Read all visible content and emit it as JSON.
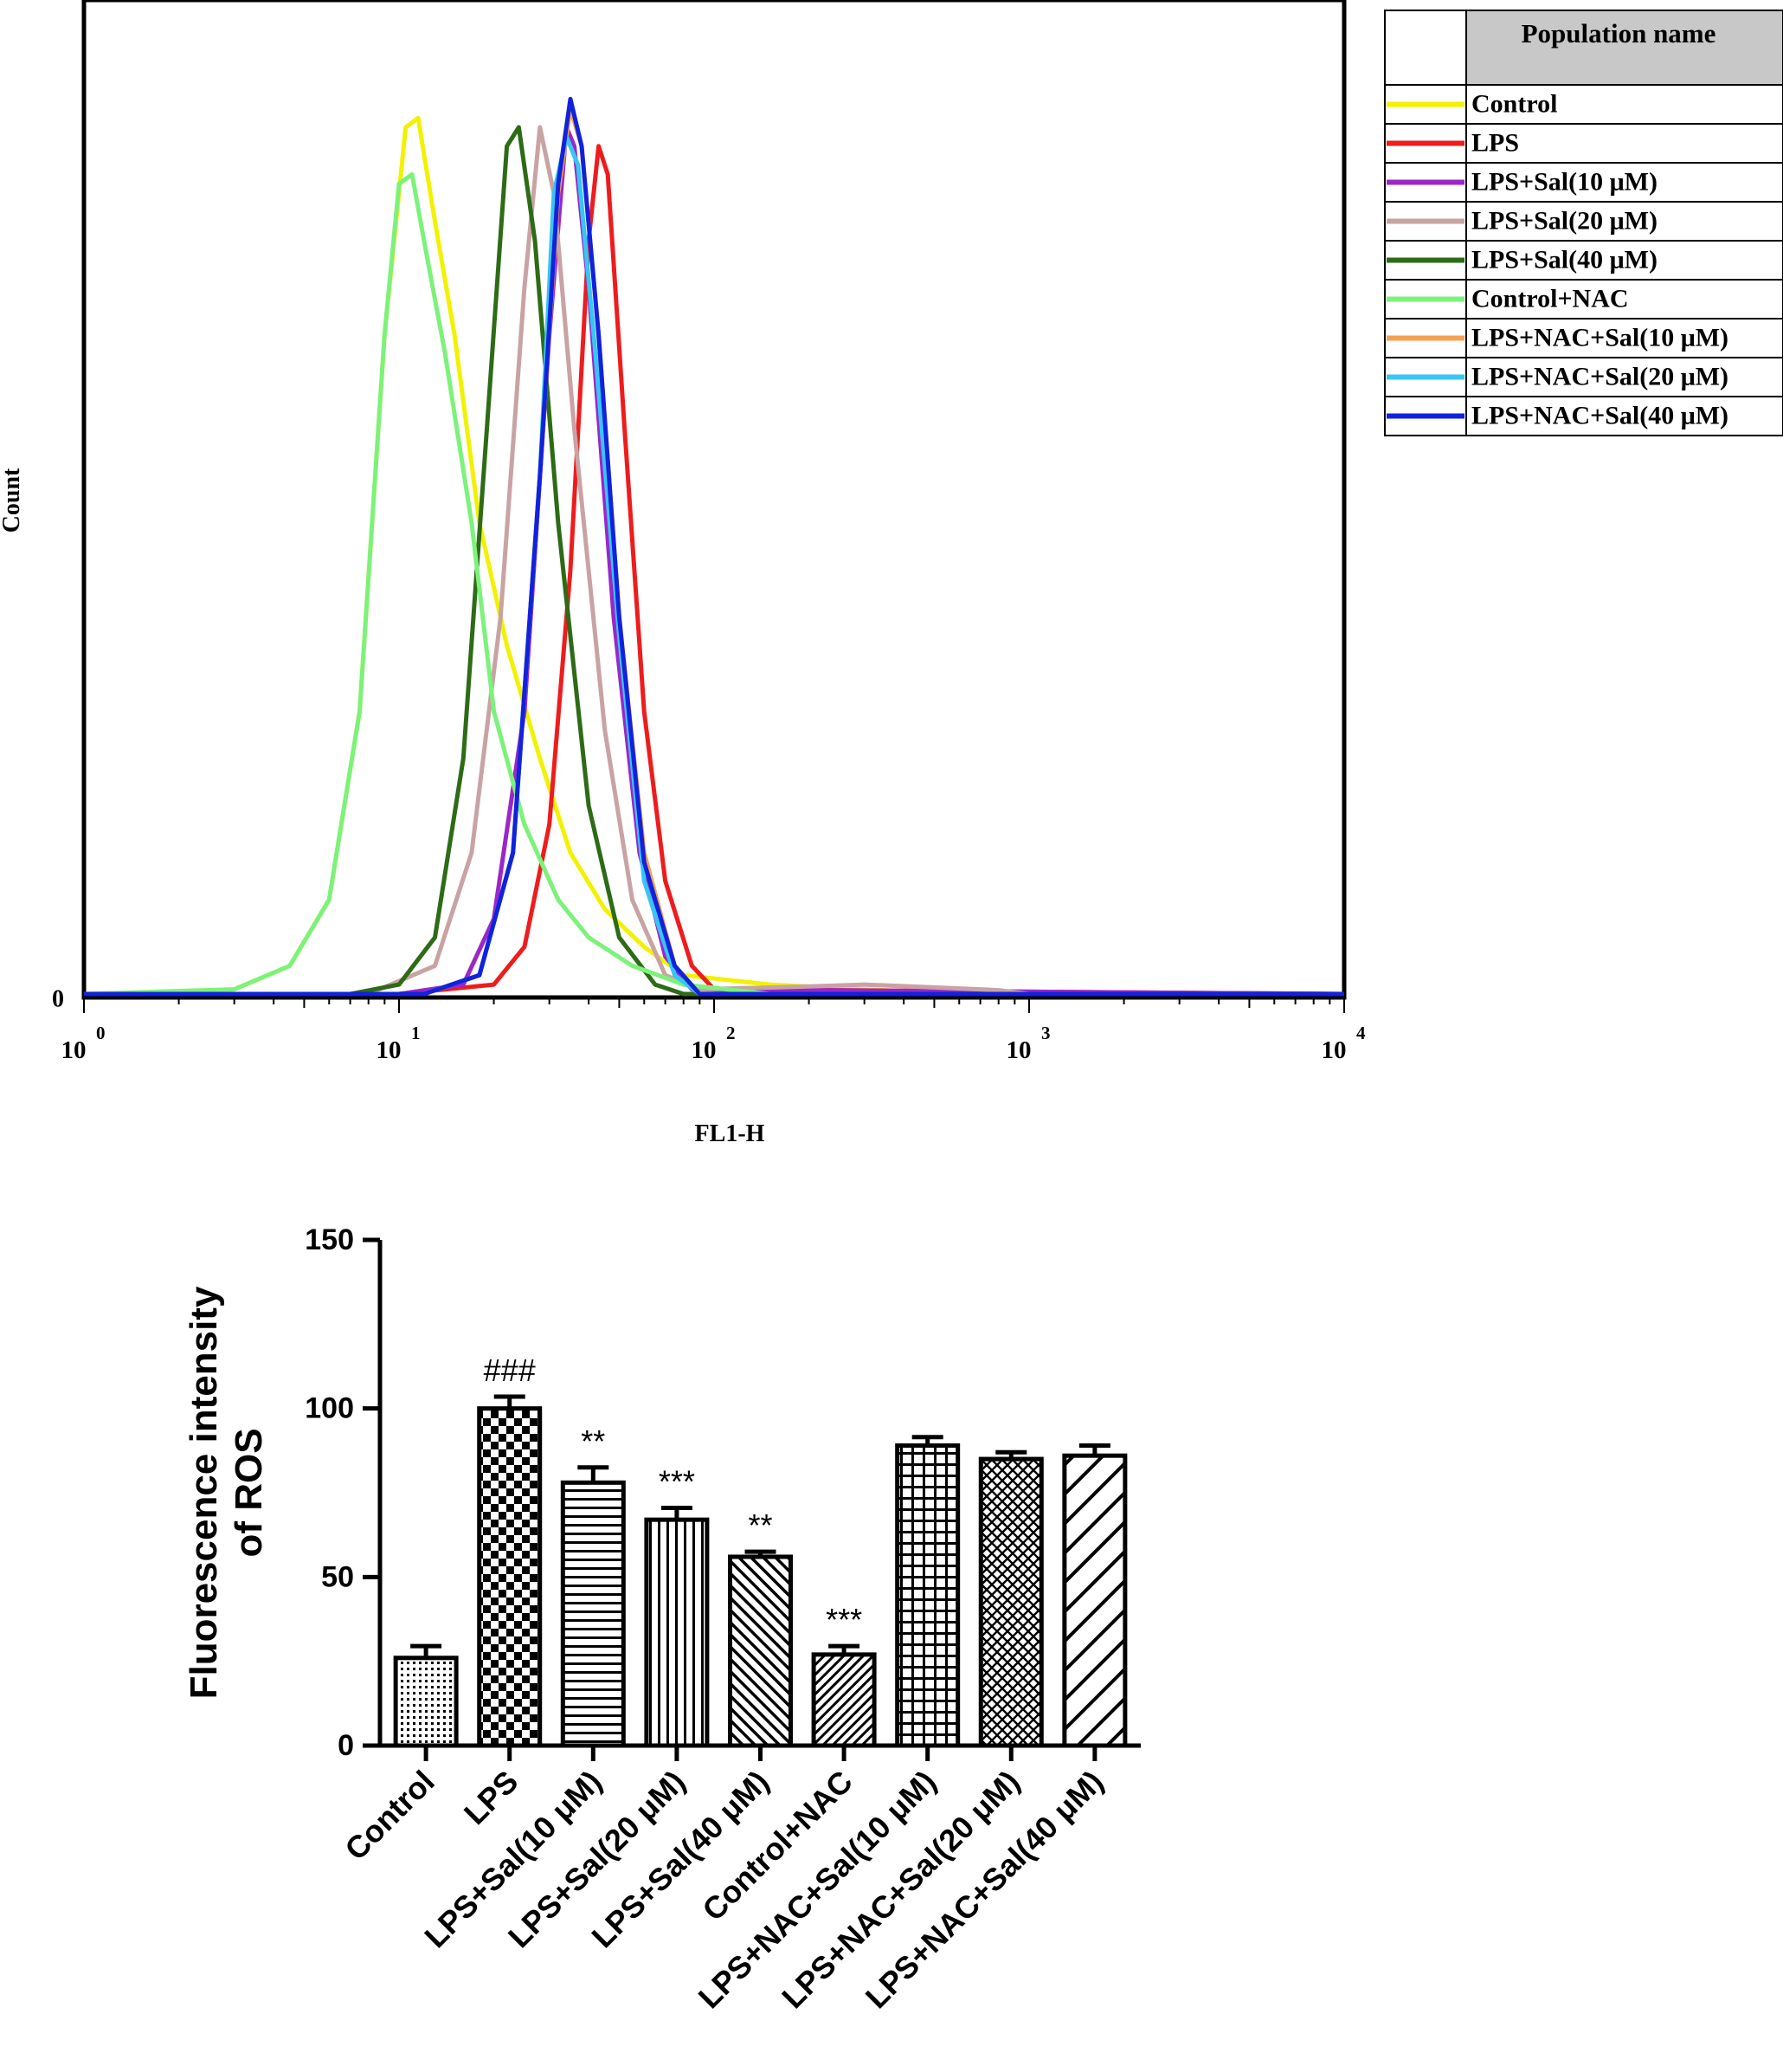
{
  "colors": {
    "Control": "#f2f200",
    "LPS": "#ee1c1c",
    "LPS+Sal(10 μM)": "#9b26c9",
    "LPS+Sal(20 μM)": "#c9a3a3",
    "LPS+Sal(40 μM)": "#2d6b16",
    "Control+NAC": "#7cf27a",
    "LPS+NAC+Sal(10 μM)": "#f5a152",
    "LPS+NAC+Sal(20 μM)": "#36c6f2",
    "LPS+NAC+Sal(40 μM)": "#1122dd",
    "bar_stroke": "#000000"
  },
  "chart_data": [
    {
      "type": "line",
      "xlabel": "FL1-H",
      "ylabel": "Count",
      "x_scale": "log",
      "xlim": [
        1,
        10000
      ],
      "ylim": [
        0,
        100
      ],
      "x_tick_labels": [
        "10^0",
        "10^1",
        "10^2",
        "10^3",
        "10^4"
      ],
      "y_tick_labels": [
        "0"
      ],
      "legend_header": "Population name",
      "legend_position": "outside-right",
      "series": [
        {
          "name": "Control",
          "points": [
            [
              1,
              0
            ],
            [
              3,
              0.5
            ],
            [
              4.5,
              3
            ],
            [
              6,
              10
            ],
            [
              7.5,
              30
            ],
            [
              9,
              70
            ],
            [
              10.5,
              92
            ],
            [
              11.5,
              93
            ],
            [
              13,
              82
            ],
            [
              15,
              70
            ],
            [
              18,
              50
            ],
            [
              22,
              37
            ],
            [
              28,
              25
            ],
            [
              35,
              15
            ],
            [
              45,
              9
            ],
            [
              60,
              5
            ],
            [
              80,
              2
            ],
            [
              150,
              1
            ],
            [
              400,
              0.3
            ],
            [
              1000,
              0
            ],
            [
              10000,
              0
            ]
          ]
        },
        {
          "name": "LPS",
          "points": [
            [
              1,
              0
            ],
            [
              10,
              0
            ],
            [
              20,
              1
            ],
            [
              25,
              5
            ],
            [
              30,
              18
            ],
            [
              35,
              45
            ],
            [
              40,
              80
            ],
            [
              43,
              90
            ],
            [
              46,
              87
            ],
            [
              52,
              60
            ],
            [
              60,
              30
            ],
            [
              70,
              12
            ],
            [
              85,
              3
            ],
            [
              100,
              0.5
            ],
            [
              10000,
              0
            ]
          ]
        },
        {
          "name": "LPS+Sal(10 μM)",
          "points": [
            [
              1,
              0
            ],
            [
              10,
              0
            ],
            [
              16,
              1
            ],
            [
              20,
              8
            ],
            [
              25,
              30
            ],
            [
              30,
              70
            ],
            [
              34,
              92
            ],
            [
              36,
              90
            ],
            [
              40,
              75
            ],
            [
              48,
              40
            ],
            [
              58,
              15
            ],
            [
              70,
              4
            ],
            [
              85,
              0.5
            ],
            [
              10000,
              0
            ]
          ]
        },
        {
          "name": "LPS+Sal(20 μM)",
          "points": [
            [
              1,
              0
            ],
            [
              8,
              0
            ],
            [
              13,
              3
            ],
            [
              17,
              15
            ],
            [
              21,
              40
            ],
            [
              25,
              75
            ],
            [
              28,
              92
            ],
            [
              31,
              85
            ],
            [
              36,
              60
            ],
            [
              45,
              28
            ],
            [
              55,
              10
            ],
            [
              70,
              2
            ],
            [
              90,
              0.5
            ],
            [
              200,
              0.8
            ],
            [
              300,
              1
            ],
            [
              500,
              0.7
            ],
            [
              800,
              0.4
            ],
            [
              1000,
              0
            ],
            [
              10000,
              0
            ]
          ]
        },
        {
          "name": "LPS+Sal(40 μM)",
          "points": [
            [
              1,
              0
            ],
            [
              7,
              0
            ],
            [
              10,
              1
            ],
            [
              13,
              6
            ],
            [
              16,
              25
            ],
            [
              19,
              60
            ],
            [
              22,
              90
            ],
            [
              24,
              92
            ],
            [
              27,
              80
            ],
            [
              32,
              50
            ],
            [
              40,
              20
            ],
            [
              50,
              6
            ],
            [
              65,
              1
            ],
            [
              80,
              0
            ],
            [
              10000,
              0
            ]
          ]
        },
        {
          "name": "Control+NAC",
          "points": [
            [
              1,
              0
            ],
            [
              3,
              0.5
            ],
            [
              4.5,
              3
            ],
            [
              6,
              10
            ],
            [
              7.5,
              30
            ],
            [
              9,
              70
            ],
            [
              10,
              86
            ],
            [
              11,
              87
            ],
            [
              12,
              80
            ],
            [
              14,
              68
            ],
            [
              17,
              50
            ],
            [
              20,
              30
            ],
            [
              25,
              18
            ],
            [
              32,
              10
            ],
            [
              40,
              6
            ],
            [
              55,
              3
            ],
            [
              80,
              1
            ],
            [
              150,
              0
            ],
            [
              10000,
              0
            ]
          ]
        },
        {
          "name": "LPS+NAC+Sal(10 μM)",
          "points": [
            [
              1,
              0
            ],
            [
              12,
              0
            ],
            [
              18,
              2
            ],
            [
              23,
              15
            ],
            [
              28,
              55
            ],
            [
              32,
              85
            ],
            [
              35,
              94
            ],
            [
              38,
              90
            ],
            [
              43,
              70
            ],
            [
              50,
              40
            ],
            [
              60,
              15
            ],
            [
              75,
              3
            ],
            [
              90,
              0
            ],
            [
              10000,
              0
            ]
          ]
        },
        {
          "name": "LPS+NAC+Sal(20 μM)",
          "points": [
            [
              1,
              0
            ],
            [
              12,
              0
            ],
            [
              18,
              2
            ],
            [
              23,
              15
            ],
            [
              28,
              55
            ],
            [
              31,
              85
            ],
            [
              34,
              91
            ],
            [
              37,
              88
            ],
            [
              42,
              68
            ],
            [
              50,
              38
            ],
            [
              60,
              12
            ],
            [
              75,
              2
            ],
            [
              90,
              0
            ],
            [
              10000,
              0
            ]
          ]
        },
        {
          "name": "LPS+NAC+Sal(40 μM)",
          "points": [
            [
              1,
              0
            ],
            [
              12,
              0
            ],
            [
              18,
              2
            ],
            [
              23,
              15
            ],
            [
              28,
              55
            ],
            [
              32,
              86
            ],
            [
              35,
              95
            ],
            [
              38,
              90
            ],
            [
              43,
              70
            ],
            [
              50,
              40
            ],
            [
              60,
              14
            ],
            [
              75,
              3
            ],
            [
              90,
              0
            ],
            [
              10000,
              0
            ]
          ]
        }
      ]
    },
    {
      "type": "bar",
      "xlabel": "",
      "ylabel": "Fluorescence intensity of ROS",
      "ylim": [
        0,
        150
      ],
      "y_ticks": [
        0,
        50,
        100,
        150
      ],
      "categories": [
        "Control",
        "LPS",
        "LPS+Sal(10 μM)",
        "LPS+Sal(20 μM)",
        "LPS+Sal(40 μM)",
        "Control+NAC",
        "LPS+NAC+Sal(10 μM)",
        "LPS+NAC+Sal(20 μM)",
        "LPS+NAC+Sal(40 μM)"
      ],
      "values": [
        26,
        100,
        78,
        67,
        56,
        27,
        89,
        85,
        86
      ],
      "errors": [
        3.5,
        3.5,
        4.5,
        3.5,
        1.5,
        2.5,
        2.5,
        2.0,
        3.0
      ],
      "annotations": [
        "",
        "###",
        "**",
        "***",
        "**",
        "***",
        "",
        "",
        ""
      ],
      "patterns": [
        "dots",
        "checker",
        "hlines",
        "vlines",
        "diag-up",
        "diag-down-dense",
        "grid",
        "crosshatch",
        "diag-down-wide"
      ]
    }
  ]
}
